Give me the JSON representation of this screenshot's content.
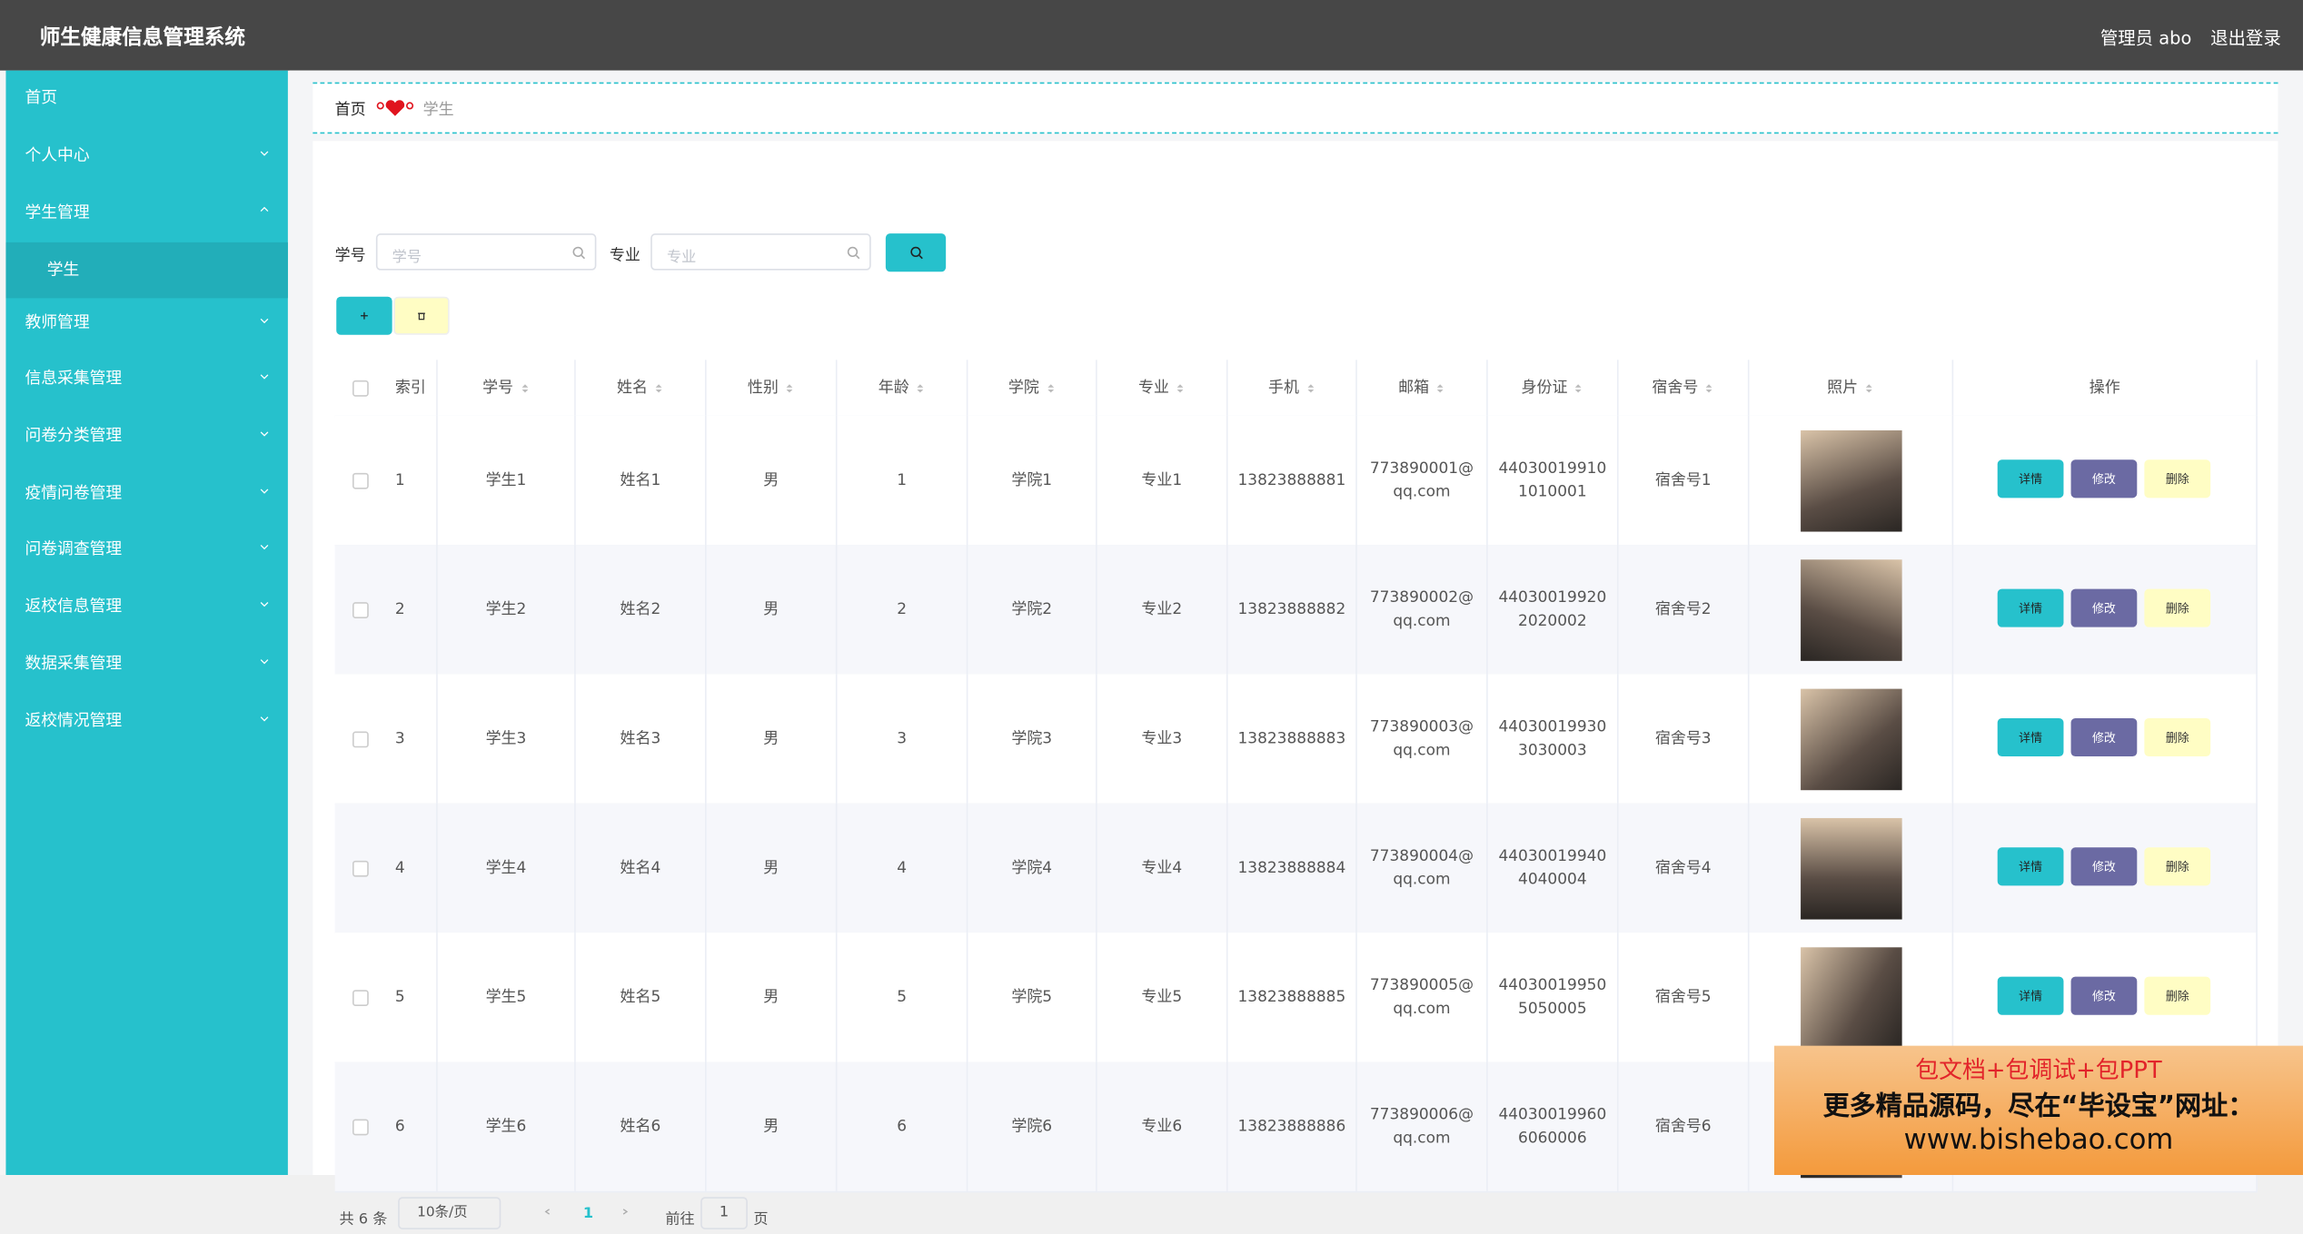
{
  "header": {
    "title": "师生健康信息管理系统",
    "user": "管理员 abo",
    "logout": "退出登录"
  },
  "sidebar": {
    "items": [
      "首页",
      "个人中心",
      "学生管理",
      "教师管理",
      "信息采集管理",
      "问卷分类管理",
      "疫情问卷管理",
      "问卷调查管理",
      "返校信息管理",
      "数据采集管理",
      "返校情况管理"
    ],
    "sub": "学生"
  },
  "breadcrumb": {
    "home": "首页",
    "current": "学生"
  },
  "search": {
    "fields": [
      {
        "label": "学号",
        "placeholder": "学号"
      },
      {
        "label": "专业",
        "placeholder": "专业"
      }
    ]
  },
  "table": {
    "columns": [
      "索引",
      "学号",
      "姓名",
      "性别",
      "年龄",
      "学院",
      "专业",
      "手机",
      "邮箱",
      "身份证",
      "宿舍号",
      "照片",
      "操作"
    ],
    "rows": [
      [
        1,
        "学生1",
        "姓名1",
        "男",
        1,
        "学院1",
        "专业1",
        "13823888881",
        "773890001@qq.com",
        "440300199101010001",
        "宿舍号1"
      ],
      [
        2,
        "学生2",
        "姓名2",
        "男",
        2,
        "学院2",
        "专业2",
        "13823888882",
        "773890002@qq.com",
        "440300199202020002",
        "宿舍号2"
      ],
      [
        3,
        "学生3",
        "姓名3",
        "男",
        3,
        "学院3",
        "专业3",
        "13823888883",
        "773890003@qq.com",
        "440300199303030003",
        "宿舍号3"
      ],
      [
        4,
        "学生4",
        "姓名4",
        "男",
        4,
        "学院4",
        "专业4",
        "13823888884",
        "773890004@qq.com",
        "440300199404040004",
        "宿舍号4"
      ],
      [
        5,
        "学生5",
        "姓名5",
        "男",
        5,
        "学院5",
        "专业5",
        "13823888885",
        "773890005@qq.com",
        "440300199505050005",
        "宿舍号5"
      ],
      [
        6,
        "学生6",
        "姓名6",
        "男",
        6,
        "学院6",
        "专业6",
        "13823888886",
        "773890006@qq.com",
        "440300199606060006",
        "宿舍号6"
      ]
    ],
    "actions": [
      "详情",
      "修改",
      "删除"
    ]
  },
  "pagination": {
    "total": "共 6 条",
    "size": "10条/页",
    "page": "1",
    "goto": "前往",
    "goto_value": "1",
    "unit": "页"
  },
  "watermark": {
    "line1": "包文档+包调试+包PPT",
    "line2": "更多精品源码，尽在“毕设宝”网址：",
    "line3": "www.bishebao.com"
  }
}
